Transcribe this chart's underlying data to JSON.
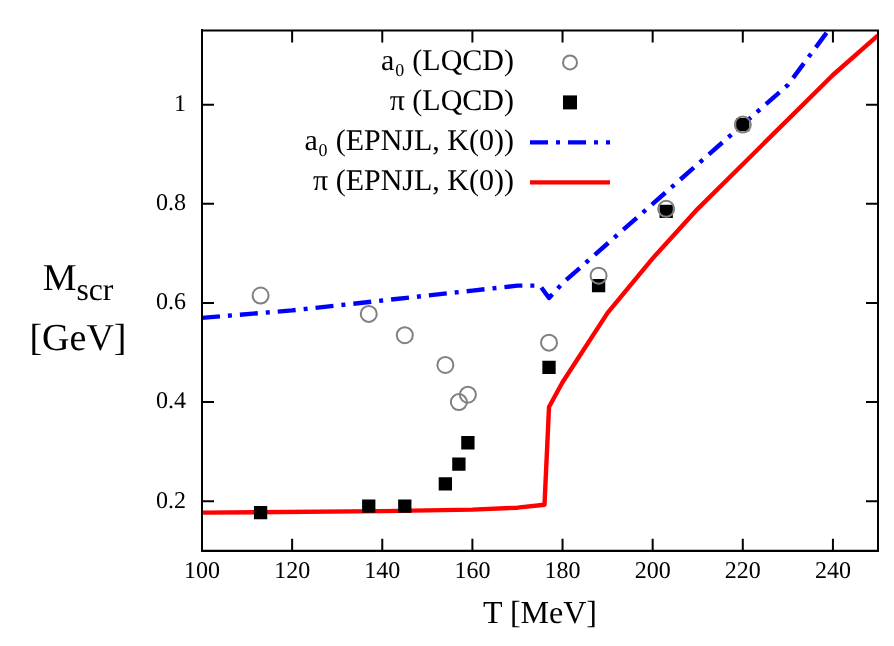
{
  "chart_data": {
    "type": "scatter",
    "xlabel": "T [MeV]",
    "ylabel": "M$_{scr}$ [GeV]",
    "xlim": [
      100,
      250
    ],
    "ylim": [
      0.1,
      1.15
    ],
    "xticks": [
      100,
      120,
      140,
      160,
      180,
      200,
      220,
      240
    ],
    "yticks": [
      0.2,
      0.4,
      0.6,
      0.8,
      1
    ],
    "grid": false,
    "legend": "top left",
    "series": [
      {
        "name": "a₀ (LQCD)",
        "type": "scatter",
        "marker": "circle",
        "color": "#808080",
        "x": [
          113,
          137,
          145,
          154,
          157,
          159,
          177,
          188,
          203,
          220
        ],
        "values": [
          0.615,
          0.578,
          0.535,
          0.475,
          0.4,
          0.415,
          0.52,
          0.655,
          0.79,
          0.96
        ]
      },
      {
        "name": "π (LQCD)",
        "type": "scatter",
        "marker": "square",
        "color": "#000000",
        "x": [
          113,
          137,
          145,
          154,
          157,
          159,
          177,
          188,
          203,
          220
        ],
        "values": [
          0.177,
          0.19,
          0.19,
          0.235,
          0.275,
          0.318,
          0.47,
          0.635,
          0.785,
          0.96
        ]
      },
      {
        "name": "a₀ (EPNJL, K(0))",
        "type": "line",
        "line_style": "dashed",
        "marker": "none",
        "color": "#0000ff",
        "x": [
          100,
          120,
          140,
          160,
          170,
          175,
          177,
          180,
          190,
          200,
          210,
          220,
          230,
          239
        ],
        "values": [
          0.57,
          0.585,
          0.605,
          0.625,
          0.635,
          0.635,
          0.61,
          0.64,
          0.72,
          0.8,
          0.88,
          0.96,
          1.04,
          1.15
        ]
      },
      {
        "name": "π (EPNJL, K(0))",
        "type": "line",
        "line_style": "solid",
        "marker": "none",
        "color": "#ff0000",
        "x": [
          100,
          140,
          160,
          170,
          176,
          177,
          180,
          190,
          200,
          210,
          220,
          230,
          240,
          250
        ],
        "values": [
          0.177,
          0.18,
          0.183,
          0.187,
          0.193,
          0.39,
          0.44,
          0.58,
          0.69,
          0.79,
          0.88,
          0.97,
          1.06,
          1.14
        ]
      }
    ]
  }
}
